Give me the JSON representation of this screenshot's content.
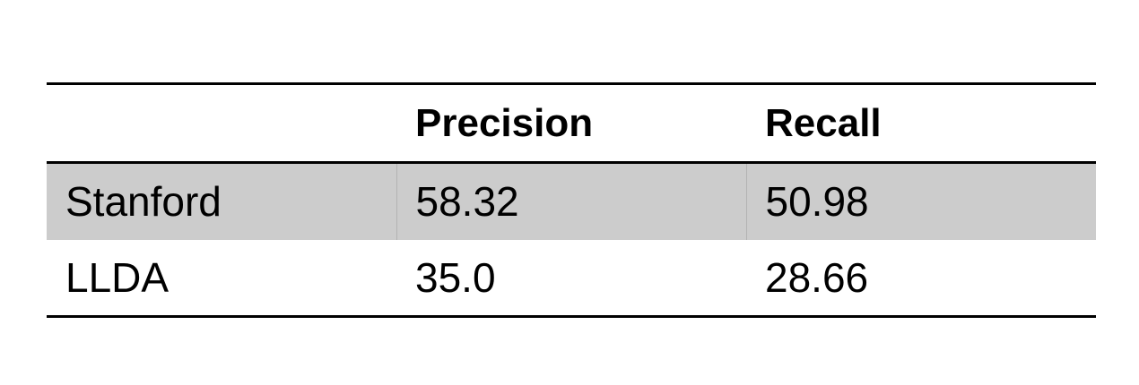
{
  "table": {
    "columns": [
      "",
      "Precision",
      "Recall"
    ],
    "rows": [
      {
        "label": "Stanford",
        "precision": "58.32",
        "recall": "50.98"
      },
      {
        "label": "LLDA",
        "precision": "35.0",
        "recall": "28.66"
      }
    ],
    "colors": {
      "shaded_row": "#cccccc",
      "rule": "#000000"
    }
  }
}
